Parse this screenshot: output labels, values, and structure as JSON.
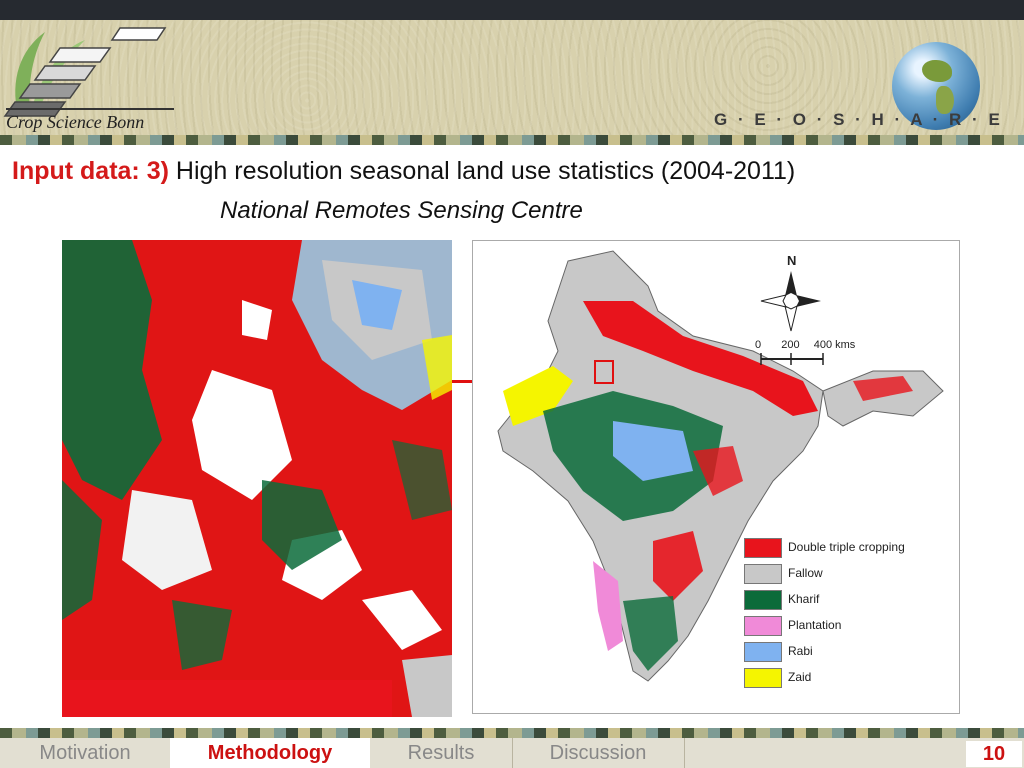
{
  "header": {
    "logo_text": "Crop Science Bonn",
    "brand": "G · E · O · S · H · A · R · E"
  },
  "title": {
    "prefix": "Input data:",
    "number": "3)",
    "text": "High resolution seasonal land use statistics (2004-2011)",
    "subtitle": "National Remotes Sensing Centre"
  },
  "map": {
    "north_label": "N",
    "scale_labels": [
      "0",
      "200",
      "400 kms"
    ],
    "legend": [
      {
        "label": "Double triple cropping",
        "color": "#e8141c"
      },
      {
        "label": "Fallow",
        "color": "#c8c8c8"
      },
      {
        "label": "Kharif",
        "color": "#0b6b3a"
      },
      {
        "label": "Plantation",
        "color": "#f08ad8"
      },
      {
        "label": "Rabi",
        "color": "#7fb2f0"
      },
      {
        "label": "Zaid",
        "color": "#f5f500"
      }
    ]
  },
  "nav": {
    "tabs": [
      "Motivation",
      "Methodology",
      "Results",
      "Discussion"
    ],
    "active": "Methodology",
    "page": "10"
  }
}
